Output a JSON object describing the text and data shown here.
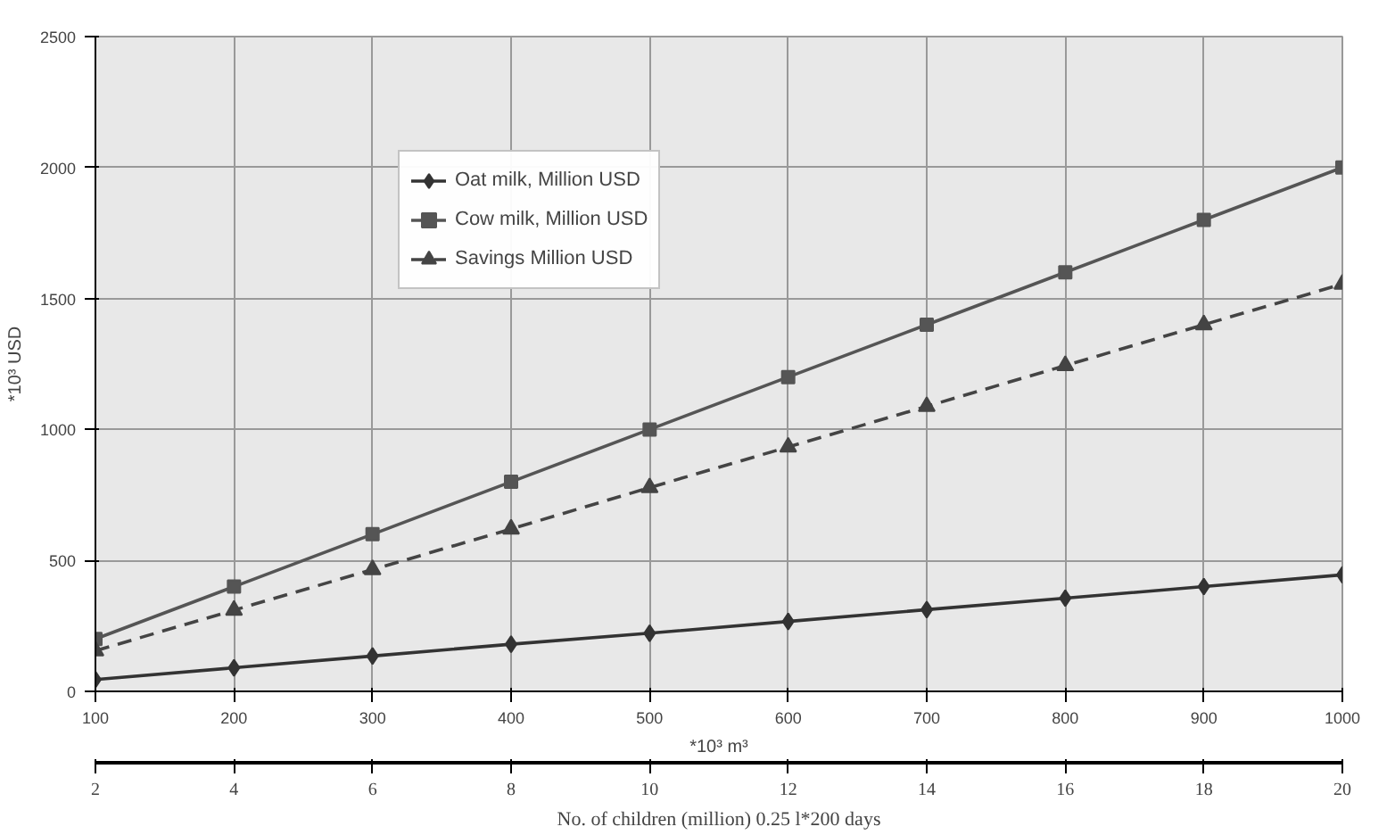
{
  "chart_data": {
    "type": "line",
    "xlabel": "*10³ m³",
    "ylabel": "*10³ USD",
    "x2label": "No. of children (million) 0.25 l*200 days",
    "x": [
      100,
      200,
      300,
      400,
      500,
      600,
      700,
      800,
      900,
      1000
    ],
    "series": [
      {
        "name": "Oat milk, Million USD",
        "color": "#333333",
        "values": [
          45,
          90,
          135,
          180,
          222,
          267,
          312,
          356,
          400,
          445
        ],
        "marker": "diamond",
        "line_style": "solid"
      },
      {
        "name": "Cow milk, Million USD",
        "color": "#555555",
        "values": [
          200,
          400,
          600,
          800,
          1000,
          1200,
          1400,
          1600,
          1800,
          2000
        ],
        "marker": "square",
        "line_style": "solid"
      },
      {
        "name": "Savings Million USD",
        "color": "#444444",
        "values": [
          155,
          310,
          465,
          620,
          778,
          933,
          1088,
          1244,
          1400,
          1555
        ],
        "marker": "triangle",
        "line_style": "dashed"
      }
    ],
    "xlim": [
      100,
      1000
    ],
    "xticks": [
      100,
      200,
      300,
      400,
      500,
      600,
      700,
      800,
      900,
      1000
    ],
    "x2lim": [
      2,
      20
    ],
    "x2ticks": [
      2,
      4,
      6,
      8,
      10,
      12,
      14,
      16,
      18,
      20
    ],
    "ylim": [
      0,
      2500
    ],
    "yticks": [
      0,
      500,
      1000,
      1500,
      2000,
      2500
    ],
    "grid": true,
    "legend": "top left"
  }
}
